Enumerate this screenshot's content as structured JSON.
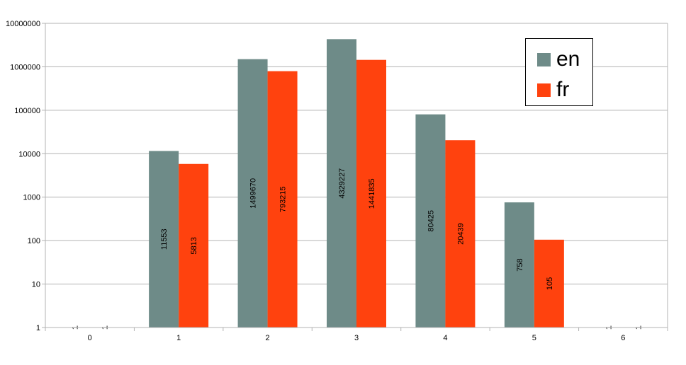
{
  "chart_data": {
    "type": "bar",
    "categories": [
      "0",
      "1",
      "2",
      "3",
      "4",
      "5",
      "6"
    ],
    "y_scale": "log",
    "ylim": [
      1,
      10000000
    ],
    "y_ticks": [
      "1",
      "10",
      "100",
      "1000",
      "10000",
      "100000",
      "1000000",
      "10000000"
    ],
    "grid": true,
    "legend_position": "top-right",
    "series": [
      {
        "name": "en",
        "color": "#6e8b88",
        "values": [
          1,
          11553,
          1499670,
          4329227,
          80425,
          758,
          1
        ]
      },
      {
        "name": "fr",
        "color": "#ff420e",
        "values": [
          1,
          5813,
          793215,
          1441835,
          20439,
          105,
          1
        ]
      }
    ]
  }
}
